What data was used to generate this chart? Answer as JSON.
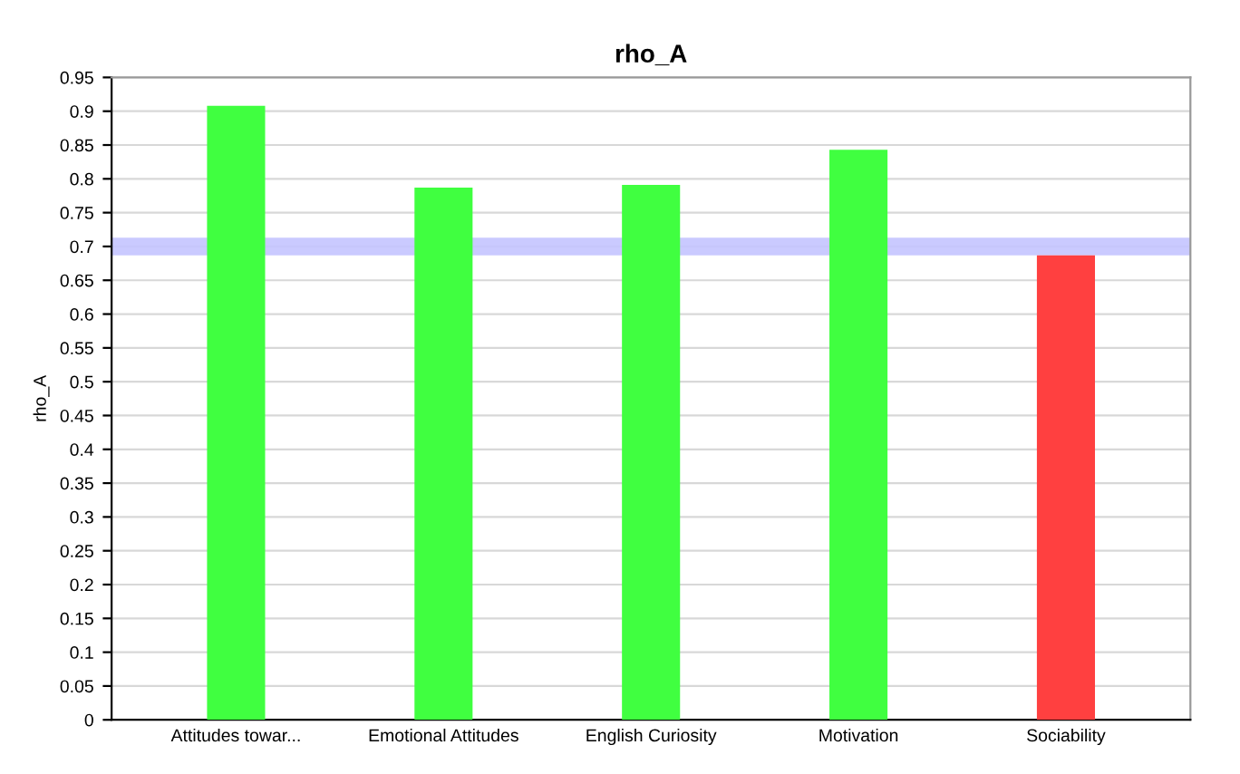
{
  "chart_data": {
    "type": "bar",
    "title": "rho_A",
    "ylabel": "rho_A",
    "categories": [
      "Attitudes towar...",
      "Emotional Attitudes",
      "English Curiosity",
      "Motivation",
      "Sociability"
    ],
    "values": [
      0.908,
      0.787,
      0.791,
      0.843,
      0.687
    ],
    "colors": [
      "#40ff40",
      "#40ff40",
      "#40ff40",
      "#40ff40",
      "#ff4040"
    ],
    "ylim": [
      0,
      0.95
    ],
    "yticks": [
      0,
      0.05,
      0.1,
      0.15,
      0.2,
      0.25,
      0.3,
      0.35,
      0.4,
      0.45,
      0.5,
      0.55,
      0.6,
      0.65,
      0.7,
      0.75,
      0.8,
      0.85,
      0.9,
      0.95
    ],
    "ref_lines": [
      {
        "axis": "y",
        "value": 0.7,
        "color": "#c4c4ff"
      }
    ],
    "grid": "y"
  }
}
